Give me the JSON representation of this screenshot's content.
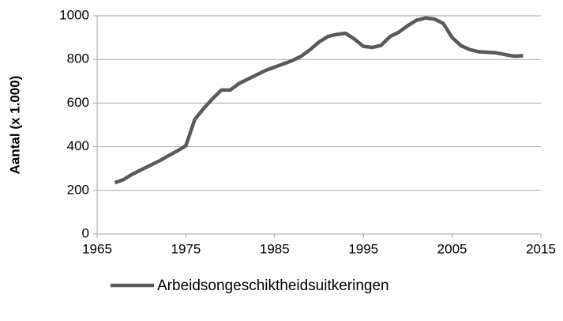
{
  "chart_data": {
    "type": "line",
    "y_label": "Aantal (x 1.000)",
    "x": [
      1967,
      1968,
      1969,
      1970,
      1971,
      1972,
      1973,
      1974,
      1975,
      1976,
      1977,
      1978,
      1979,
      1980,
      1981,
      1982,
      1983,
      1984,
      1985,
      1986,
      1987,
      1988,
      1989,
      1990,
      1991,
      1992,
      1993,
      1994,
      1995,
      1996,
      1997,
      1998,
      1999,
      2000,
      2001,
      2002,
      2003,
      2004,
      2005,
      2006,
      2007,
      2008,
      2009,
      2010,
      2011,
      2012,
      2013
    ],
    "series": [
      {
        "name": "Arbeidsongeschiktheidsuitkeringen",
        "color": "#595959",
        "values": [
          235,
          250,
          275,
          295,
          315,
          335,
          358,
          380,
          405,
          525,
          575,
          620,
          660,
          660,
          690,
          710,
          730,
          750,
          765,
          780,
          795,
          815,
          845,
          880,
          905,
          915,
          920,
          893,
          860,
          855,
          865,
          905,
          925,
          955,
          980,
          990,
          985,
          965,
          900,
          863,
          845,
          835,
          833,
          830,
          822,
          815,
          817
        ]
      }
    ],
    "xlim": [
      1965,
      2015
    ],
    "xticks": [
      1965,
      1975,
      1985,
      1995,
      2005,
      2015
    ],
    "ylim": [
      0,
      1000
    ],
    "yticks": [
      0,
      200,
      400,
      600,
      800,
      1000
    ],
    "grid": true,
    "legend": "bottom"
  }
}
